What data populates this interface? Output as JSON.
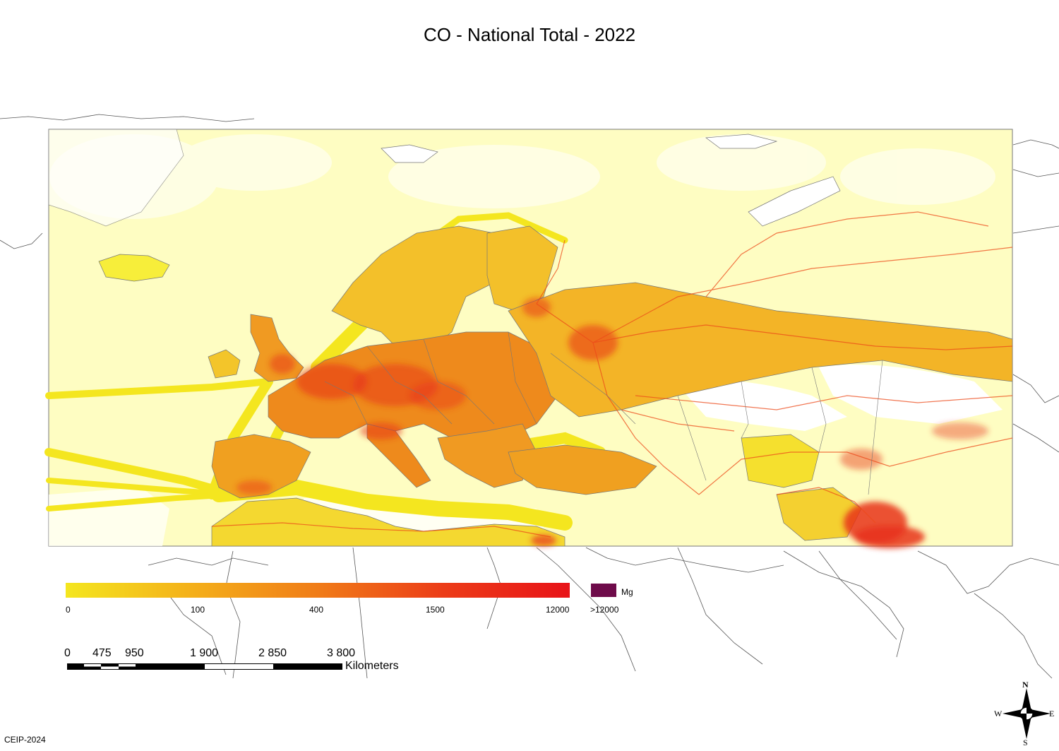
{
  "title": "CO - National Total - 2022",
  "legend": {
    "ticks": [
      "0",
      "100",
      "400",
      "1500",
      "12000"
    ],
    "overflow_label": ">12000",
    "unit": "Mg",
    "gradient_colors": [
      "#f4e61f",
      "#f4b01a",
      "#f07c18",
      "#ec3c18",
      "#e81318"
    ],
    "overflow_color": "#6e0b4a"
  },
  "scale": {
    "ticks": [
      "0",
      "475",
      "950",
      "1 900",
      "2 850",
      "3 800"
    ],
    "unit": "Kilometers"
  },
  "compass": {
    "n": "N",
    "s": "S",
    "e": "E",
    "w": "W"
  },
  "credit": "CEIP-2024",
  "map": {
    "background_color": "#fefdc2",
    "low_emission_color": "#f7ee3a",
    "mid_emission_color": "#f1a01d",
    "high_emission_color": "#e8321a"
  }
}
